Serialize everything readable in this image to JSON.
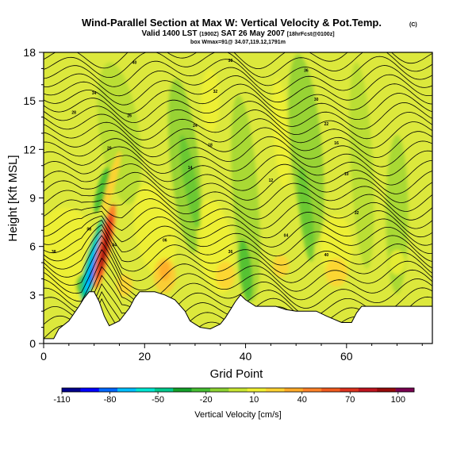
{
  "header": {
    "title": "Wind-Parallel Section at Max W: Vertical Velocity & Pot.Temp.",
    "title_mark": "(C)",
    "valid_prefix": "Valid 1400 LST",
    "valid_z": "(1900Z)",
    "valid_date": "SAT 26 May 2007",
    "valid_fcst": "[18hrFcst@0100z]",
    "box_info": "box Wmax=91@ 34.07,119.12,1791m"
  },
  "chart_data": {
    "type": "heatmap",
    "title": "Wind-Parallel Section at Max W: Vertical Velocity & Pot.Temp.",
    "xlabel": "Grid Point",
    "ylabel": "Height [Kft MSL]",
    "xlim": [
      0,
      77
    ],
    "ylim": [
      0,
      18
    ],
    "x_ticks": [
      0,
      20,
      40,
      60
    ],
    "y_ticks": [
      0,
      3,
      6,
      9,
      12,
      15,
      18
    ],
    "colorbar": {
      "label": "Vertical Velocity [cm/s]",
      "min": -110,
      "max": 110,
      "ticks": [
        -110,
        -80,
        -50,
        -20,
        10,
        40,
        70,
        100
      ],
      "colors": [
        "#00008c",
        "#0000ff",
        "#0066ff",
        "#00bfff",
        "#00e6d2",
        "#00c88c",
        "#14a028",
        "#46be32",
        "#8cd232",
        "#c8e632",
        "#f0f032",
        "#ffd232",
        "#ffaa28",
        "#ff8228",
        "#f05a1e",
        "#dc321e",
        "#be141e",
        "#960a0a",
        "#780050"
      ]
    },
    "terrain": [
      [
        0,
        0.3
      ],
      [
        2,
        0.3
      ],
      [
        3,
        0.9
      ],
      [
        5,
        1.4
      ],
      [
        7,
        2.3
      ],
      [
        8,
        2.8
      ],
      [
        9,
        3.2
      ],
      [
        10,
        3.2
      ],
      [
        11,
        2.6
      ],
      [
        12,
        1.7
      ],
      [
        13,
        1.1
      ],
      [
        15,
        1.4
      ],
      [
        17,
        2.2
      ],
      [
        18,
        2.8
      ],
      [
        19,
        3.2
      ],
      [
        22,
        3.2
      ],
      [
        24,
        3.0
      ],
      [
        26,
        2.7
      ],
      [
        28,
        2.0
      ],
      [
        29,
        1.4
      ],
      [
        31,
        1.0
      ],
      [
        33,
        0.9
      ],
      [
        35,
        1.2
      ],
      [
        36,
        1.6
      ],
      [
        37,
        2.1
      ],
      [
        38,
        2.6
      ],
      [
        39,
        3.0
      ],
      [
        40,
        2.7
      ],
      [
        41,
        2.5
      ],
      [
        42,
        2.3
      ],
      [
        44,
        2.3
      ],
      [
        46,
        2.3
      ],
      [
        48,
        2.1
      ],
      [
        50,
        2.0
      ],
      [
        52,
        2.0
      ],
      [
        54,
        2.0
      ],
      [
        56,
        1.7
      ],
      [
        59,
        1.3
      ],
      [
        61,
        1.3
      ],
      [
        62,
        1.9
      ],
      [
        63,
        2.3
      ],
      [
        77,
        2.3
      ]
    ],
    "contour_labels": [
      "40",
      "38",
      "36",
      "34",
      "32",
      "30",
      "28",
      "26",
      "24",
      "22",
      "20",
      "18",
      "16",
      "14",
      "12",
      "10",
      "08",
      "06",
      "04"
    ]
  }
}
